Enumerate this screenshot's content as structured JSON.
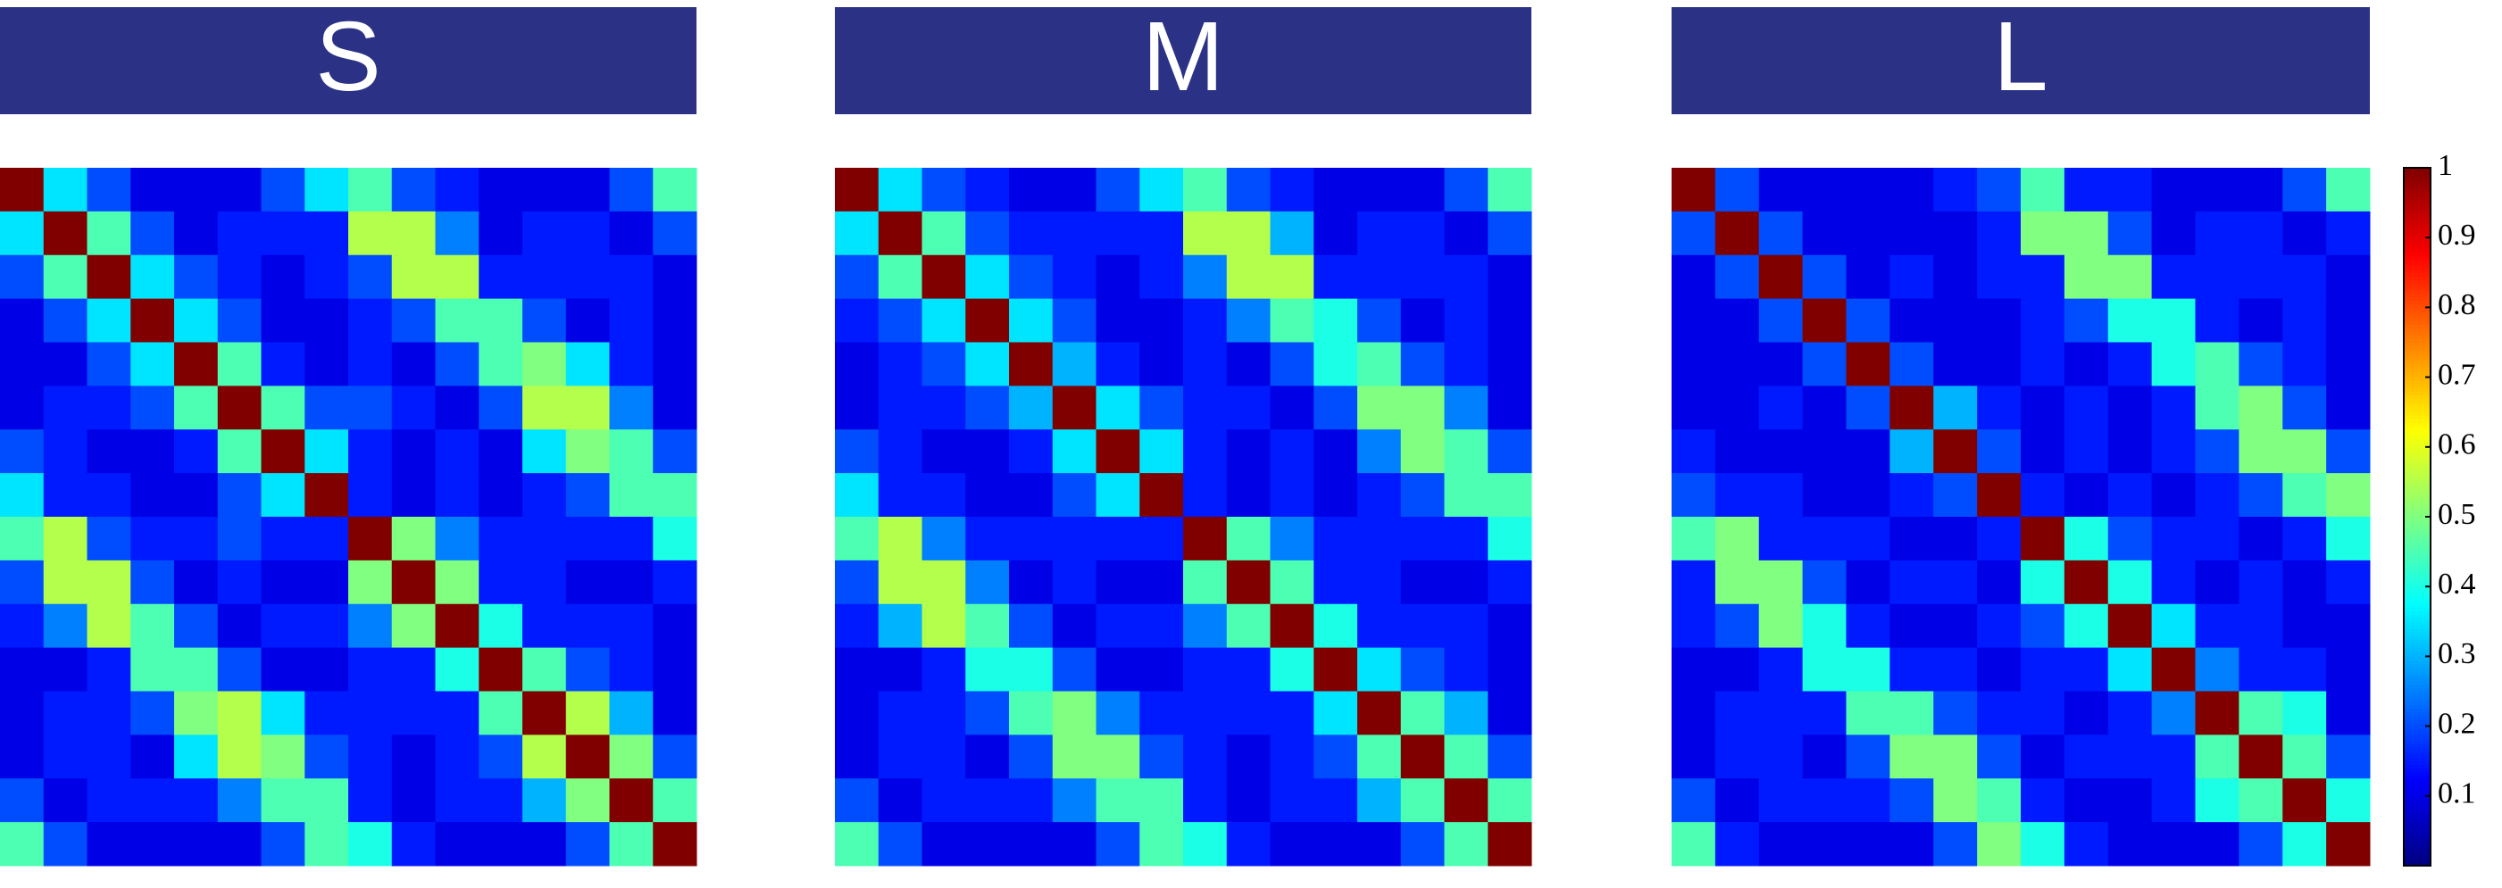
{
  "chart_data": [
    {
      "type": "heatmap",
      "title": "S",
      "colormap": "jet",
      "zlim": [
        0,
        1
      ],
      "z": [
        [
          1,
          0.35,
          0.2,
          0.1,
          0.1,
          0.1,
          0.2,
          0.35,
          0.45,
          0.2,
          0.15,
          0.1,
          0.1,
          0.1,
          0.2,
          0.45
        ],
        [
          0.35,
          1,
          0.45,
          0.2,
          0.1,
          0.15,
          0.15,
          0.15,
          0.55,
          0.55,
          0.25,
          0.1,
          0.15,
          0.15,
          0.1,
          0.2
        ],
        [
          0.2,
          0.45,
          1,
          0.35,
          0.2,
          0.15,
          0.1,
          0.15,
          0.2,
          0.55,
          0.55,
          0.15,
          0.15,
          0.15,
          0.15,
          0.1
        ],
        [
          0.1,
          0.2,
          0.35,
          1,
          0.35,
          0.2,
          0.1,
          0.1,
          0.15,
          0.2,
          0.45,
          0.45,
          0.2,
          0.1,
          0.15,
          0.1
        ],
        [
          0.1,
          0.1,
          0.2,
          0.35,
          1,
          0.45,
          0.15,
          0.1,
          0.15,
          0.1,
          0.2,
          0.45,
          0.5,
          0.35,
          0.15,
          0.1
        ],
        [
          0.1,
          0.15,
          0.15,
          0.2,
          0.45,
          1,
          0.45,
          0.2,
          0.2,
          0.15,
          0.1,
          0.2,
          0.55,
          0.55,
          0.25,
          0.1
        ],
        [
          0.2,
          0.15,
          0.1,
          0.1,
          0.15,
          0.45,
          1,
          0.35,
          0.15,
          0.1,
          0.15,
          0.1,
          0.35,
          0.5,
          0.45,
          0.2
        ],
        [
          0.35,
          0.15,
          0.15,
          0.1,
          0.1,
          0.2,
          0.35,
          1,
          0.15,
          0.1,
          0.15,
          0.1,
          0.15,
          0.2,
          0.45,
          0.45
        ],
        [
          0.45,
          0.55,
          0.2,
          0.15,
          0.15,
          0.2,
          0.15,
          0.15,
          1,
          0.5,
          0.25,
          0.15,
          0.15,
          0.15,
          0.15,
          0.4
        ],
        [
          0.2,
          0.55,
          0.55,
          0.2,
          0.1,
          0.15,
          0.1,
          0.1,
          0.5,
          1,
          0.5,
          0.15,
          0.15,
          0.1,
          0.1,
          0.15
        ],
        [
          0.15,
          0.25,
          0.55,
          0.45,
          0.2,
          0.1,
          0.15,
          0.15,
          0.25,
          0.5,
          1,
          0.4,
          0.15,
          0.15,
          0.15,
          0.1
        ],
        [
          0.1,
          0.1,
          0.15,
          0.45,
          0.45,
          0.2,
          0.1,
          0.1,
          0.15,
          0.15,
          0.4,
          1,
          0.45,
          0.2,
          0.15,
          0.1
        ],
        [
          0.1,
          0.15,
          0.15,
          0.2,
          0.5,
          0.55,
          0.35,
          0.15,
          0.15,
          0.15,
          0.15,
          0.45,
          1,
          0.55,
          0.3,
          0.1
        ],
        [
          0.1,
          0.15,
          0.15,
          0.1,
          0.35,
          0.55,
          0.5,
          0.2,
          0.15,
          0.1,
          0.15,
          0.2,
          0.55,
          1,
          0.5,
          0.2
        ],
        [
          0.2,
          0.1,
          0.15,
          0.15,
          0.15,
          0.25,
          0.45,
          0.45,
          0.15,
          0.1,
          0.15,
          0.15,
          0.3,
          0.5,
          1,
          0.45
        ],
        [
          0.45,
          0.2,
          0.1,
          0.1,
          0.1,
          0.1,
          0.2,
          0.45,
          0.4,
          0.15,
          0.1,
          0.1,
          0.1,
          0.2,
          0.45,
          1
        ]
      ]
    },
    {
      "type": "heatmap",
      "title": "M",
      "colormap": "jet",
      "zlim": [
        0,
        1
      ],
      "z": [
        [
          1,
          0.35,
          0.2,
          0.15,
          0.1,
          0.1,
          0.2,
          0.35,
          0.45,
          0.2,
          0.15,
          0.1,
          0.1,
          0.1,
          0.2,
          0.45
        ],
        [
          0.35,
          1,
          0.45,
          0.2,
          0.15,
          0.15,
          0.15,
          0.15,
          0.55,
          0.55,
          0.3,
          0.1,
          0.15,
          0.15,
          0.1,
          0.2
        ],
        [
          0.2,
          0.45,
          1,
          0.35,
          0.2,
          0.15,
          0.1,
          0.15,
          0.25,
          0.55,
          0.55,
          0.15,
          0.15,
          0.15,
          0.15,
          0.1
        ],
        [
          0.15,
          0.2,
          0.35,
          1,
          0.35,
          0.2,
          0.1,
          0.1,
          0.15,
          0.25,
          0.45,
          0.4,
          0.2,
          0.1,
          0.15,
          0.1
        ],
        [
          0.1,
          0.15,
          0.2,
          0.35,
          1,
          0.3,
          0.15,
          0.1,
          0.15,
          0.1,
          0.2,
          0.4,
          0.45,
          0.2,
          0.15,
          0.1
        ],
        [
          0.1,
          0.15,
          0.15,
          0.2,
          0.3,
          1,
          0.35,
          0.2,
          0.15,
          0.15,
          0.1,
          0.2,
          0.5,
          0.5,
          0.25,
          0.1
        ],
        [
          0.2,
          0.15,
          0.1,
          0.1,
          0.15,
          0.35,
          1,
          0.35,
          0.15,
          0.1,
          0.15,
          0.1,
          0.25,
          0.5,
          0.45,
          0.2
        ],
        [
          0.35,
          0.15,
          0.15,
          0.1,
          0.1,
          0.2,
          0.35,
          1,
          0.15,
          0.1,
          0.15,
          0.1,
          0.15,
          0.2,
          0.45,
          0.45
        ],
        [
          0.45,
          0.55,
          0.25,
          0.15,
          0.15,
          0.15,
          0.15,
          0.15,
          1,
          0.45,
          0.25,
          0.15,
          0.15,
          0.15,
          0.15,
          0.4
        ],
        [
          0.2,
          0.55,
          0.55,
          0.25,
          0.1,
          0.15,
          0.1,
          0.1,
          0.45,
          1,
          0.45,
          0.15,
          0.15,
          0.1,
          0.1,
          0.15
        ],
        [
          0.15,
          0.3,
          0.55,
          0.45,
          0.2,
          0.1,
          0.15,
          0.15,
          0.25,
          0.45,
          1,
          0.4,
          0.15,
          0.15,
          0.15,
          0.1
        ],
        [
          0.1,
          0.1,
          0.15,
          0.4,
          0.4,
          0.2,
          0.1,
          0.1,
          0.15,
          0.15,
          0.4,
          1,
          0.35,
          0.2,
          0.15,
          0.1
        ],
        [
          0.1,
          0.15,
          0.15,
          0.2,
          0.45,
          0.5,
          0.25,
          0.15,
          0.15,
          0.15,
          0.15,
          0.35,
          1,
          0.45,
          0.3,
          0.1
        ],
        [
          0.1,
          0.15,
          0.15,
          0.1,
          0.2,
          0.5,
          0.5,
          0.2,
          0.15,
          0.1,
          0.15,
          0.2,
          0.45,
          1,
          0.45,
          0.2
        ],
        [
          0.2,
          0.1,
          0.15,
          0.15,
          0.15,
          0.25,
          0.45,
          0.45,
          0.15,
          0.1,
          0.15,
          0.15,
          0.3,
          0.45,
          1,
          0.45
        ],
        [
          0.45,
          0.2,
          0.1,
          0.1,
          0.1,
          0.1,
          0.2,
          0.45,
          0.4,
          0.15,
          0.1,
          0.1,
          0.1,
          0.2,
          0.45,
          1
        ]
      ]
    },
    {
      "type": "heatmap",
      "title": "L",
      "colormap": "jet",
      "zlim": [
        0,
        1
      ],
      "colorbar_ticks": [
        0.1,
        0.2,
        0.3,
        0.4,
        0.5,
        0.6,
        0.7,
        0.8,
        0.9,
        1
      ],
      "z": [
        [
          1,
          0.2,
          0.1,
          0.1,
          0.1,
          0.1,
          0.15,
          0.2,
          0.45,
          0.15,
          0.15,
          0.1,
          0.1,
          0.1,
          0.2,
          0.45
        ],
        [
          0.2,
          1,
          0.2,
          0.1,
          0.1,
          0.1,
          0.1,
          0.15,
          0.5,
          0.5,
          0.2,
          0.1,
          0.15,
          0.15,
          0.1,
          0.15
        ],
        [
          0.1,
          0.2,
          1,
          0.2,
          0.1,
          0.15,
          0.1,
          0.15,
          0.15,
          0.5,
          0.5,
          0.15,
          0.15,
          0.15,
          0.15,
          0.1
        ],
        [
          0.1,
          0.1,
          0.2,
          1,
          0.2,
          0.1,
          0.1,
          0.1,
          0.15,
          0.2,
          0.4,
          0.4,
          0.15,
          0.1,
          0.15,
          0.1
        ],
        [
          0.1,
          0.1,
          0.1,
          0.2,
          1,
          0.2,
          0.1,
          0.1,
          0.15,
          0.1,
          0.15,
          0.4,
          0.45,
          0.2,
          0.15,
          0.1
        ],
        [
          0.1,
          0.1,
          0.15,
          0.1,
          0.2,
          1,
          0.3,
          0.15,
          0.1,
          0.15,
          0.1,
          0.15,
          0.45,
          0.5,
          0.2,
          0.1
        ],
        [
          0.15,
          0.1,
          0.1,
          0.1,
          0.1,
          0.3,
          1,
          0.2,
          0.1,
          0.15,
          0.1,
          0.15,
          0.2,
          0.5,
          0.5,
          0.2
        ],
        [
          0.2,
          0.15,
          0.15,
          0.1,
          0.1,
          0.15,
          0.2,
          1,
          0.15,
          0.1,
          0.15,
          0.1,
          0.15,
          0.2,
          0.45,
          0.5
        ],
        [
          0.45,
          0.5,
          0.15,
          0.15,
          0.15,
          0.1,
          0.1,
          0.15,
          1,
          0.4,
          0.2,
          0.15,
          0.15,
          0.1,
          0.15,
          0.4
        ],
        [
          0.15,
          0.5,
          0.5,
          0.2,
          0.1,
          0.15,
          0.15,
          0.1,
          0.4,
          1,
          0.4,
          0.15,
          0.1,
          0.15,
          0.1,
          0.15
        ],
        [
          0.15,
          0.2,
          0.5,
          0.4,
          0.15,
          0.1,
          0.1,
          0.15,
          0.2,
          0.4,
          1,
          0.35,
          0.15,
          0.15,
          0.1,
          0.1
        ],
        [
          0.1,
          0.1,
          0.15,
          0.4,
          0.4,
          0.15,
          0.15,
          0.1,
          0.15,
          0.15,
          0.35,
          1,
          0.25,
          0.15,
          0.15,
          0.1
        ],
        [
          0.1,
          0.15,
          0.15,
          0.15,
          0.45,
          0.45,
          0.2,
          0.15,
          0.15,
          0.1,
          0.15,
          0.25,
          1,
          0.45,
          0.4,
          0.1
        ],
        [
          0.1,
          0.15,
          0.15,
          0.1,
          0.2,
          0.5,
          0.5,
          0.2,
          0.1,
          0.15,
          0.15,
          0.15,
          0.45,
          1,
          0.45,
          0.2
        ],
        [
          0.2,
          0.1,
          0.15,
          0.15,
          0.15,
          0.2,
          0.5,
          0.45,
          0.15,
          0.1,
          0.1,
          0.15,
          0.4,
          0.45,
          1,
          0.4
        ],
        [
          0.45,
          0.15,
          0.1,
          0.1,
          0.1,
          0.1,
          0.2,
          0.5,
          0.4,
          0.15,
          0.1,
          0.1,
          0.1,
          0.2,
          0.4,
          1
        ]
      ]
    }
  ]
}
